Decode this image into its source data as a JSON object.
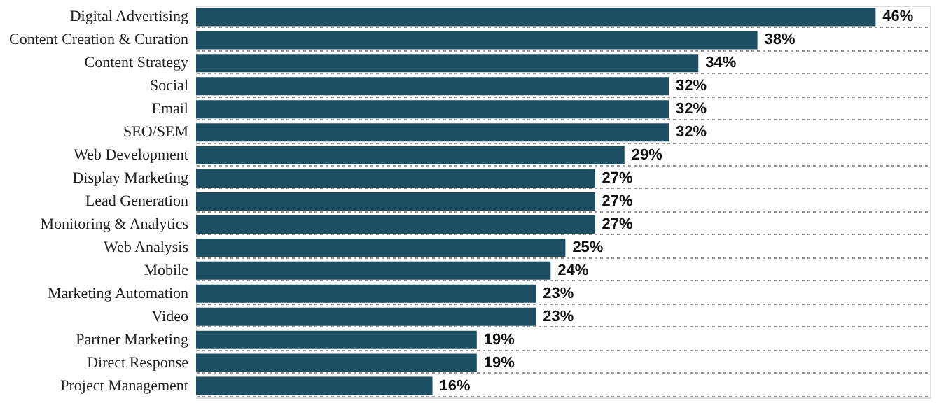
{
  "chart_data": {
    "type": "bar",
    "orientation": "horizontal",
    "grid": "y",
    "color": "#1c4f61",
    "categories": [
      "Digital Advertising",
      "Content Creation & Curation",
      "Content Strategy",
      "Social",
      "Email",
      "SEO/SEM",
      "Web Development",
      "Display Marketing",
      "Lead Generation",
      "Monitoring & Analytics",
      "Web Analysis",
      "Mobile",
      "Marketing Automation",
      "Video",
      "Partner Marketing",
      "Direct Response",
      "Project Management"
    ],
    "values": [
      46,
      38,
      34,
      32,
      32,
      32,
      29,
      27,
      27,
      27,
      25,
      24,
      23,
      23,
      19,
      19,
      16
    ],
    "value_labels": [
      "46%",
      "38%",
      "34%",
      "32%",
      "32%",
      "32%",
      "29%",
      "27%",
      "27%",
      "27%",
      "25%",
      "24%",
      "23%",
      "23%",
      "19%",
      "19%",
      "16%"
    ]
  }
}
